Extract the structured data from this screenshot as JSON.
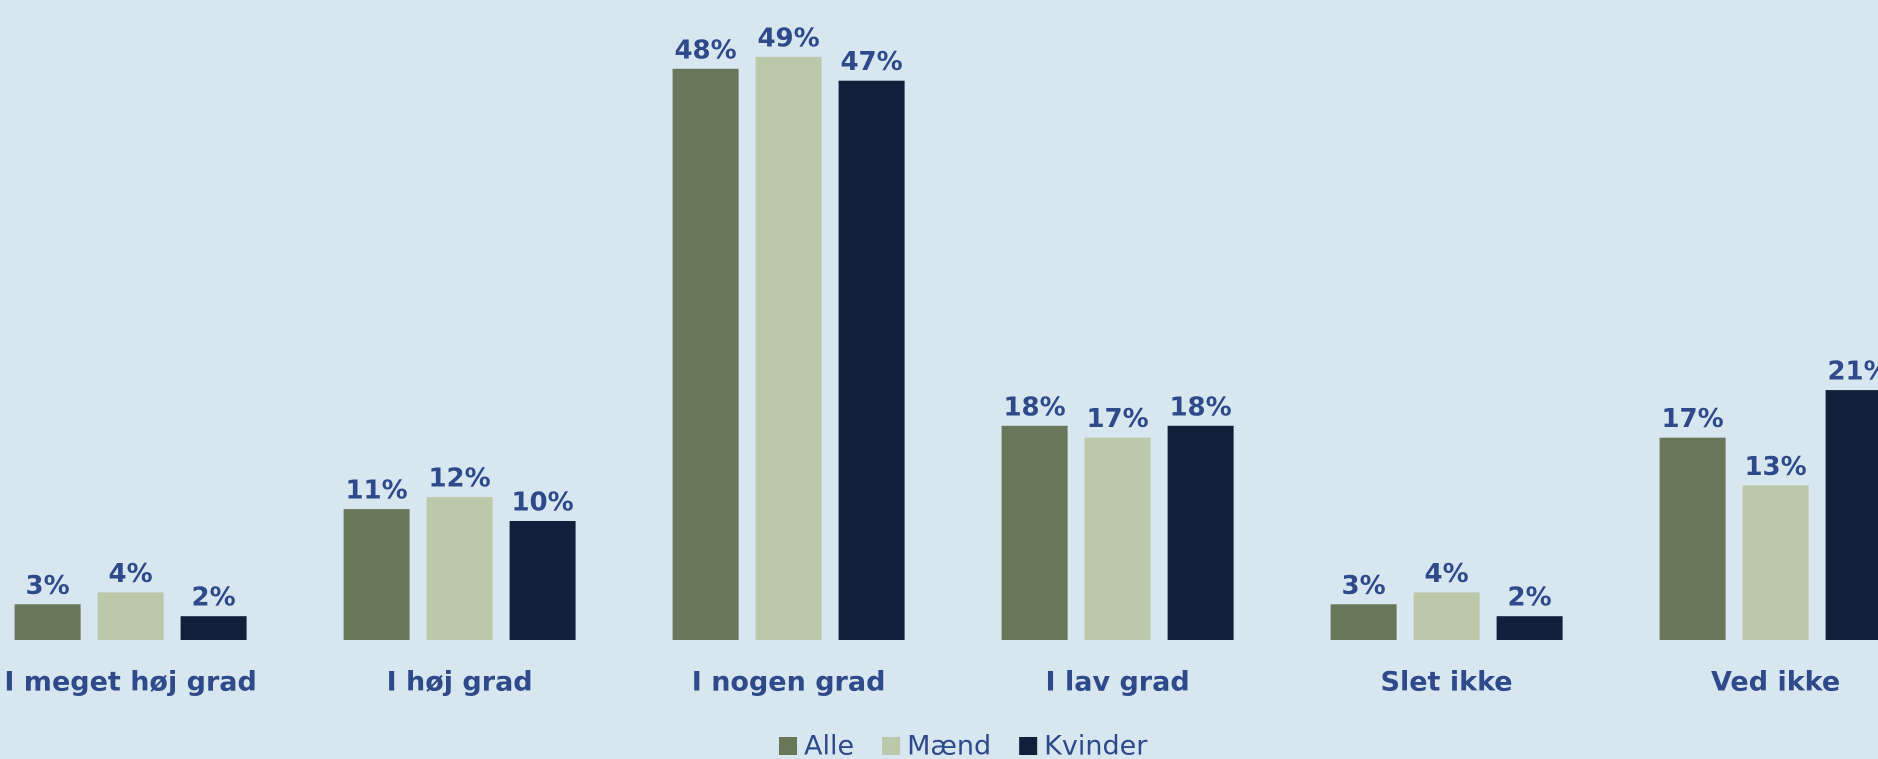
{
  "chart_data": {
    "type": "bar",
    "categories": [
      "I meget høj grad",
      "I høj grad",
      "I nogen grad",
      "I lav grad",
      "Slet ikke",
      "Ved ikke"
    ],
    "series": [
      {
        "name": "Alle",
        "color": "#68765a",
        "values": [
          3,
          11,
          48,
          18,
          3,
          17
        ],
        "value_labels": [
          "3%",
          "11%",
          "48%",
          "18%",
          "3%",
          "17%"
        ]
      },
      {
        "name": "Mænd",
        "color": "#bbc8a9",
        "values": [
          4,
          12,
          49,
          17,
          4,
          13
        ],
        "value_labels": [
          "4%",
          "12%",
          "49%",
          "17%",
          "4%",
          "13%"
        ]
      },
      {
        "name": "Kvinder",
        "color": "#131e3a",
        "values": [
          2,
          10,
          47,
          18,
          2,
          21
        ],
        "value_labels": [
          "2%",
          "10%",
          "47%",
          "18%",
          "2%",
          "21%"
        ]
      }
    ],
    "ylim": [
      0,
      50
    ],
    "legend": "bottom"
  }
}
